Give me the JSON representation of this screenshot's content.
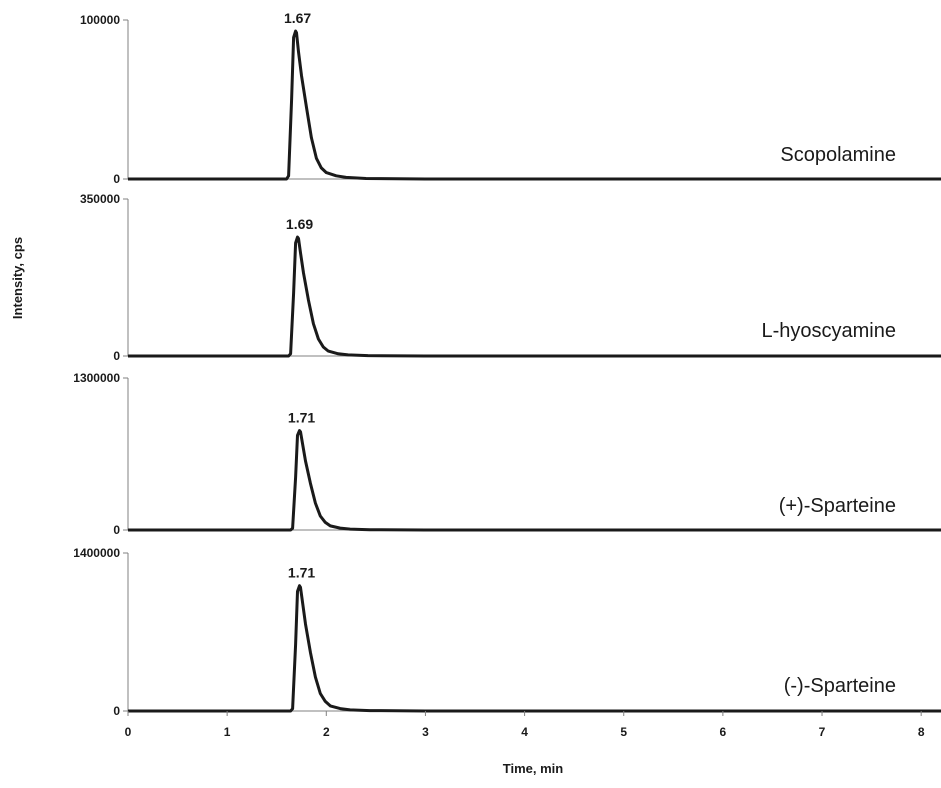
{
  "chart_data": {
    "type": "line",
    "xlabel": "Time, min",
    "ylabel": "Intensity,  cps",
    "xlim": [
      0,
      8.2
    ],
    "x_ticks": [
      "0",
      "1",
      "2",
      "3",
      "4",
      "5",
      "6",
      "7",
      "8"
    ],
    "grid": false,
    "panels": [
      {
        "name": "Scopolamine",
        "ylim": [
          0,
          100000
        ],
        "y_ticks": [
          "0",
          "100000"
        ],
        "peak_time": 1.67,
        "peak_label": "1.67",
        "peak_intensity": 93000,
        "x": [
          0,
          1.6,
          1.62,
          1.65,
          1.67,
          1.69,
          1.7,
          1.72,
          1.75,
          1.8,
          1.85,
          1.9,
          1.95,
          2.0,
          2.1,
          2.2,
          2.4,
          3.0,
          8.2
        ],
        "values": [
          0,
          0,
          2000,
          50000,
          89000,
          93000,
          92000,
          80000,
          65000,
          45000,
          26000,
          13000,
          7000,
          4000,
          2000,
          1000,
          300,
          0,
          0
        ]
      },
      {
        "name": "L-hyoscyamine",
        "ylim": [
          0,
          350000
        ],
        "y_ticks": [
          "0",
          "350000"
        ],
        "peak_time": 1.69,
        "peak_label": "1.69",
        "peak_intensity": 265000,
        "x": [
          0,
          1.62,
          1.64,
          1.67,
          1.69,
          1.71,
          1.72,
          1.74,
          1.77,
          1.82,
          1.87,
          1.92,
          1.97,
          2.02,
          2.12,
          2.22,
          2.42,
          3.0,
          8.2
        ],
        "values": [
          0,
          0,
          5000,
          140000,
          252000,
          265000,
          262000,
          230000,
          185000,
          125000,
          72000,
          38000,
          20000,
          11000,
          5000,
          2500,
          800,
          0,
          0
        ]
      },
      {
        "name": "(+)-Sparteine",
        "ylim": [
          0,
          1300000
        ],
        "y_ticks": [
          "0",
          "1300000"
        ],
        "peak_time": 1.71,
        "peak_label": "1.71",
        "peak_intensity": 850000,
        "x": [
          0,
          1.64,
          1.66,
          1.69,
          1.71,
          1.73,
          1.74,
          1.76,
          1.79,
          1.84,
          1.89,
          1.94,
          1.99,
          2.04,
          2.14,
          2.24,
          2.44,
          3.0,
          8.2
        ],
        "values": [
          0,
          0,
          15000,
          450000,
          810000,
          850000,
          840000,
          740000,
          590000,
          400000,
          230000,
          120000,
          65000,
          35000,
          16000,
          8000,
          2500,
          0,
          0
        ]
      },
      {
        "name": "(-)-Sparteine",
        "ylim": [
          0,
          1400000
        ],
        "y_ticks": [
          "0",
          "1400000"
        ],
        "peak_time": 1.71,
        "peak_label": "1.71",
        "peak_intensity": 1110000,
        "x": [
          0,
          1.64,
          1.66,
          1.69,
          1.71,
          1.73,
          1.74,
          1.76,
          1.79,
          1.84,
          1.89,
          1.94,
          1.99,
          2.04,
          2.14,
          2.24,
          2.44,
          3.0,
          8.2
        ],
        "values": [
          0,
          0,
          20000,
          590000,
          1060000,
          1110000,
          1095000,
          965000,
          770000,
          520000,
          300000,
          155000,
          85000,
          45000,
          21000,
          10000,
          3300,
          0,
          0
        ]
      }
    ]
  }
}
